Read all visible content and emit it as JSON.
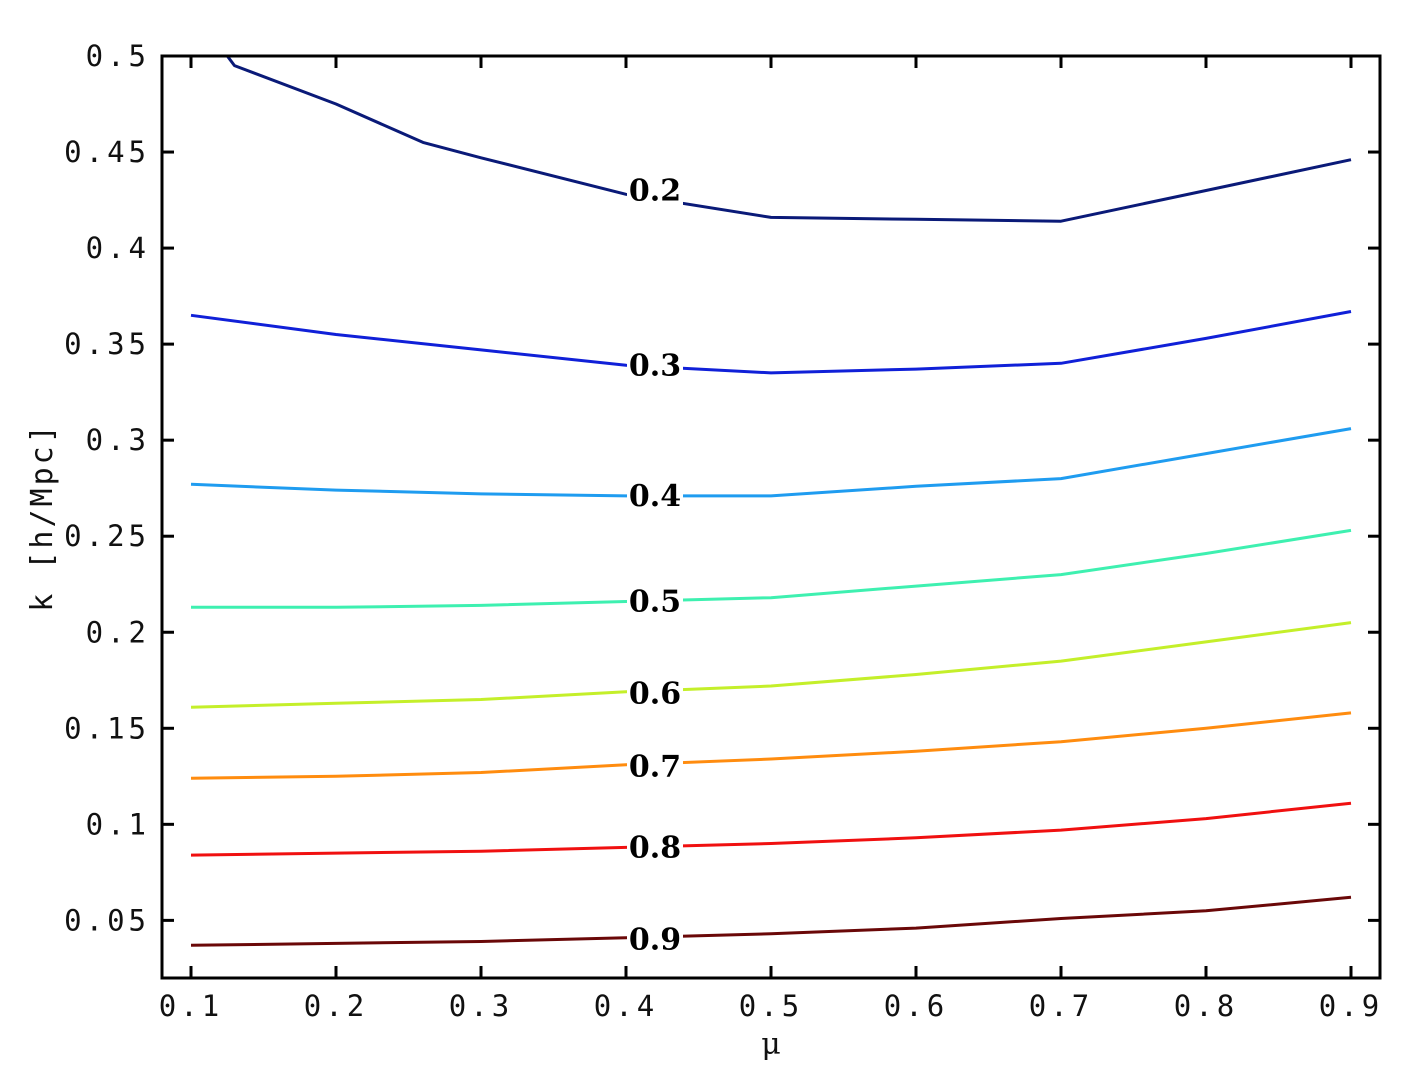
{
  "chart_data": {
    "type": "line",
    "xlabel": "μ",
    "ylabel": "k  [h/Mpc]",
    "xlim": [
      0.08,
      0.92
    ],
    "ylim": [
      0.02,
      0.5
    ],
    "xticks": [
      0.1,
      0.2,
      0.3,
      0.4,
      0.5,
      0.6,
      0.7,
      0.8,
      0.9
    ],
    "xtick_labels": [
      "0.1",
      "0.2",
      "0.3",
      "0.4",
      "0.5",
      "0.6",
      "0.7",
      "0.8",
      "0.9"
    ],
    "yticks": [
      0.05,
      0.1,
      0.15,
      0.2,
      0.25,
      0.3,
      0.35,
      0.4,
      0.45,
      0.5
    ],
    "ytick_labels": [
      "0.05",
      "0.1",
      "0.15",
      "0.2",
      "0.25",
      "0.3",
      "0.35",
      "0.4",
      "0.45",
      "0.5"
    ],
    "grid": false,
    "series": [
      {
        "label": "0.2",
        "color": "#0a1a78",
        "x": [
          0.125,
          0.13,
          0.2,
          0.26,
          0.3,
          0.4,
          0.5,
          0.6,
          0.7,
          0.8,
          0.9
        ],
        "y": [
          0.5,
          0.495,
          0.475,
          0.455,
          0.447,
          0.428,
          0.416,
          0.415,
          0.414,
          0.43,
          0.446
        ],
        "label_x": 0.42,
        "label_y": 0.43
      },
      {
        "label": "0.3",
        "color": "#1020d8",
        "x": [
          0.1,
          0.2,
          0.3,
          0.4,
          0.5,
          0.6,
          0.7,
          0.8,
          0.9
        ],
        "y": [
          0.365,
          0.355,
          0.347,
          0.339,
          0.335,
          0.337,
          0.34,
          0.353,
          0.367
        ],
        "label_x": 0.42,
        "label_y": 0.339
      },
      {
        "label": "0.4",
        "color": "#1f9cf0",
        "x": [
          0.1,
          0.2,
          0.3,
          0.4,
          0.5,
          0.6,
          0.7,
          0.8,
          0.9
        ],
        "y": [
          0.277,
          0.274,
          0.272,
          0.271,
          0.271,
          0.276,
          0.28,
          0.293,
          0.306
        ],
        "label_x": 0.42,
        "label_y": 0.271
      },
      {
        "label": "0.5",
        "color": "#3ef0b0",
        "x": [
          0.1,
          0.2,
          0.3,
          0.4,
          0.5,
          0.6,
          0.7,
          0.8,
          0.9
        ],
        "y": [
          0.213,
          0.213,
          0.214,
          0.216,
          0.218,
          0.224,
          0.23,
          0.241,
          0.253
        ],
        "label_x": 0.42,
        "label_y": 0.216
      },
      {
        "label": "0.6",
        "color": "#c4ef2a",
        "x": [
          0.1,
          0.2,
          0.3,
          0.4,
          0.5,
          0.6,
          0.7,
          0.8,
          0.9
        ],
        "y": [
          0.161,
          0.163,
          0.165,
          0.169,
          0.172,
          0.178,
          0.185,
          0.195,
          0.205
        ],
        "label_x": 0.42,
        "label_y": 0.168
      },
      {
        "label": "0.7",
        "color": "#ff8c0f",
        "x": [
          0.1,
          0.2,
          0.3,
          0.4,
          0.5,
          0.6,
          0.7,
          0.8,
          0.9
        ],
        "y": [
          0.124,
          0.125,
          0.127,
          0.131,
          0.134,
          0.138,
          0.143,
          0.15,
          0.158
        ],
        "label_x": 0.42,
        "label_y": 0.13
      },
      {
        "label": "0.8",
        "color": "#f01010",
        "x": [
          0.1,
          0.2,
          0.3,
          0.4,
          0.5,
          0.6,
          0.7,
          0.8,
          0.9
        ],
        "y": [
          0.084,
          0.085,
          0.086,
          0.088,
          0.09,
          0.093,
          0.097,
          0.103,
          0.111
        ],
        "label_x": 0.42,
        "label_y": 0.088
      },
      {
        "label": "0.9",
        "color": "#6a0808",
        "x": [
          0.1,
          0.2,
          0.3,
          0.4,
          0.5,
          0.6,
          0.7,
          0.8,
          0.9
        ],
        "y": [
          0.037,
          0.038,
          0.039,
          0.041,
          0.043,
          0.046,
          0.051,
          0.055,
          0.062
        ],
        "label_x": 0.42,
        "label_y": 0.04
      }
    ]
  }
}
